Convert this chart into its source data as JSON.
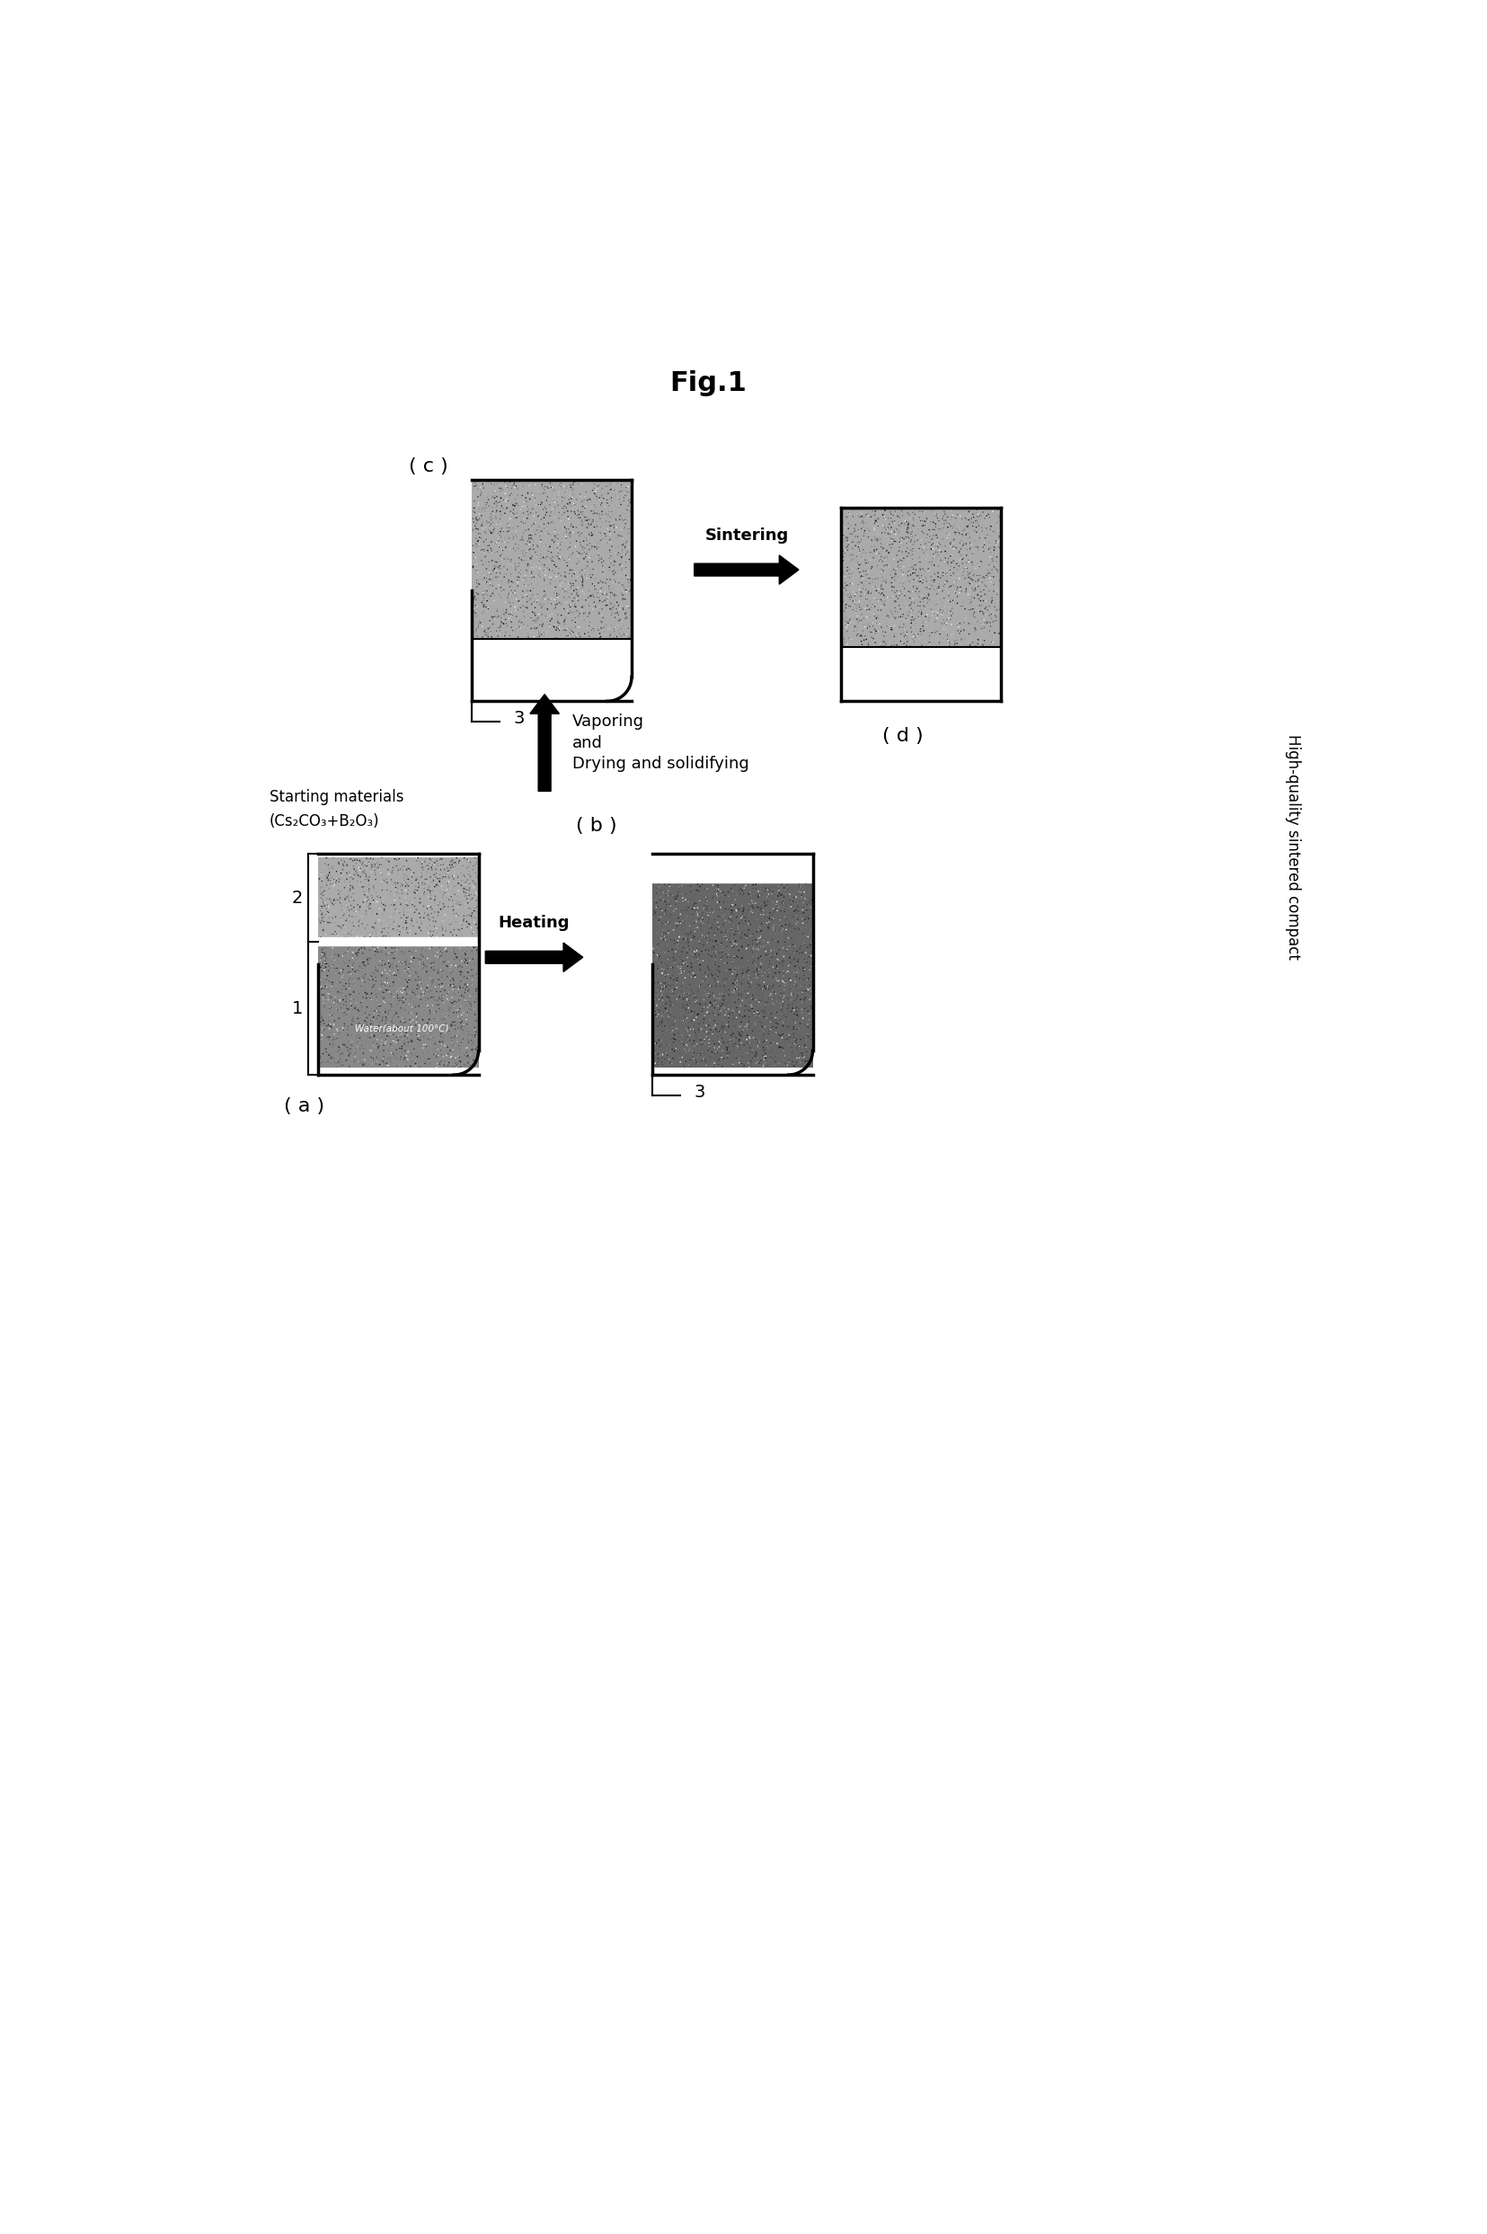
{
  "title": "Fig.1",
  "bg_color": "#ffffff",
  "text_color": "#000000",
  "label_a": "( a )",
  "label_b": "( b )",
  "label_c": "( c )",
  "label_d": "( d )",
  "starting_materials_line1": "Starting materials",
  "starting_materials_line2": "(Cs₂CO₃+B₂O₃)",
  "water_label": "Water(about 100°C)",
  "arrow_heating": "Heating",
  "arrow_vaporing": "Vaporing",
  "arrow_and": "and",
  "arrow_drying": "Drying and solidifying",
  "arrow_sintering": "Sintering",
  "final_label": "High-quality sintered compact"
}
